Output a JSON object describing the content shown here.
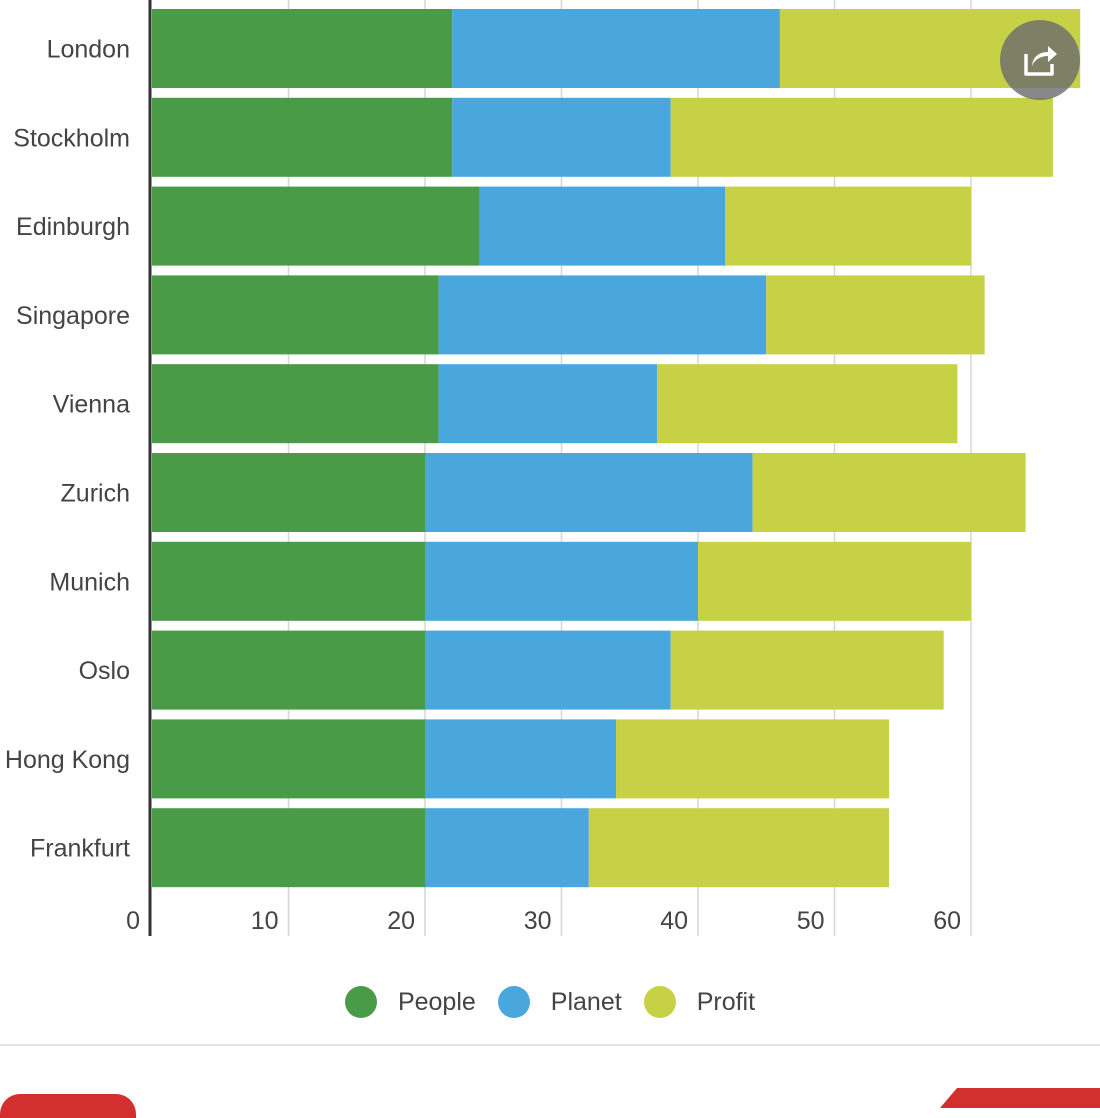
{
  "chart_data": {
    "type": "bar",
    "orientation": "horizontal",
    "stacked": true,
    "categories": [
      "London",
      "Stockholm",
      "Edinburgh",
      "Singapore",
      "Vienna",
      "Zurich",
      "Munich",
      "Oslo",
      "Hong Kong",
      "Frankfurt"
    ],
    "series": [
      {
        "name": "People",
        "color": "#4a9b48",
        "values": [
          22,
          22,
          24,
          21,
          21,
          20,
          20,
          20,
          20,
          20
        ]
      },
      {
        "name": "Planet",
        "color": "#4aa7de",
        "values": [
          24,
          16,
          18,
          24,
          16,
          24,
          20,
          18,
          14,
          12
        ]
      },
      {
        "name": "Profit",
        "color": "#c6d146",
        "values": [
          22,
          28,
          18,
          16,
          22,
          20,
          20,
          20,
          20,
          22
        ]
      }
    ],
    "xticks": [
      "0",
      "10",
      "20",
      "30",
      "40",
      "50",
      "60"
    ],
    "xlim": [
      0,
      68
    ],
    "grid": true,
    "legend_position": "bottom"
  },
  "legend": [
    {
      "label": "People",
      "color": "#4a9b48"
    },
    {
      "label": "Planet",
      "color": "#4aa7de"
    },
    {
      "label": "Profit",
      "color": "#c6d146"
    }
  ],
  "share_icon": "share-icon"
}
